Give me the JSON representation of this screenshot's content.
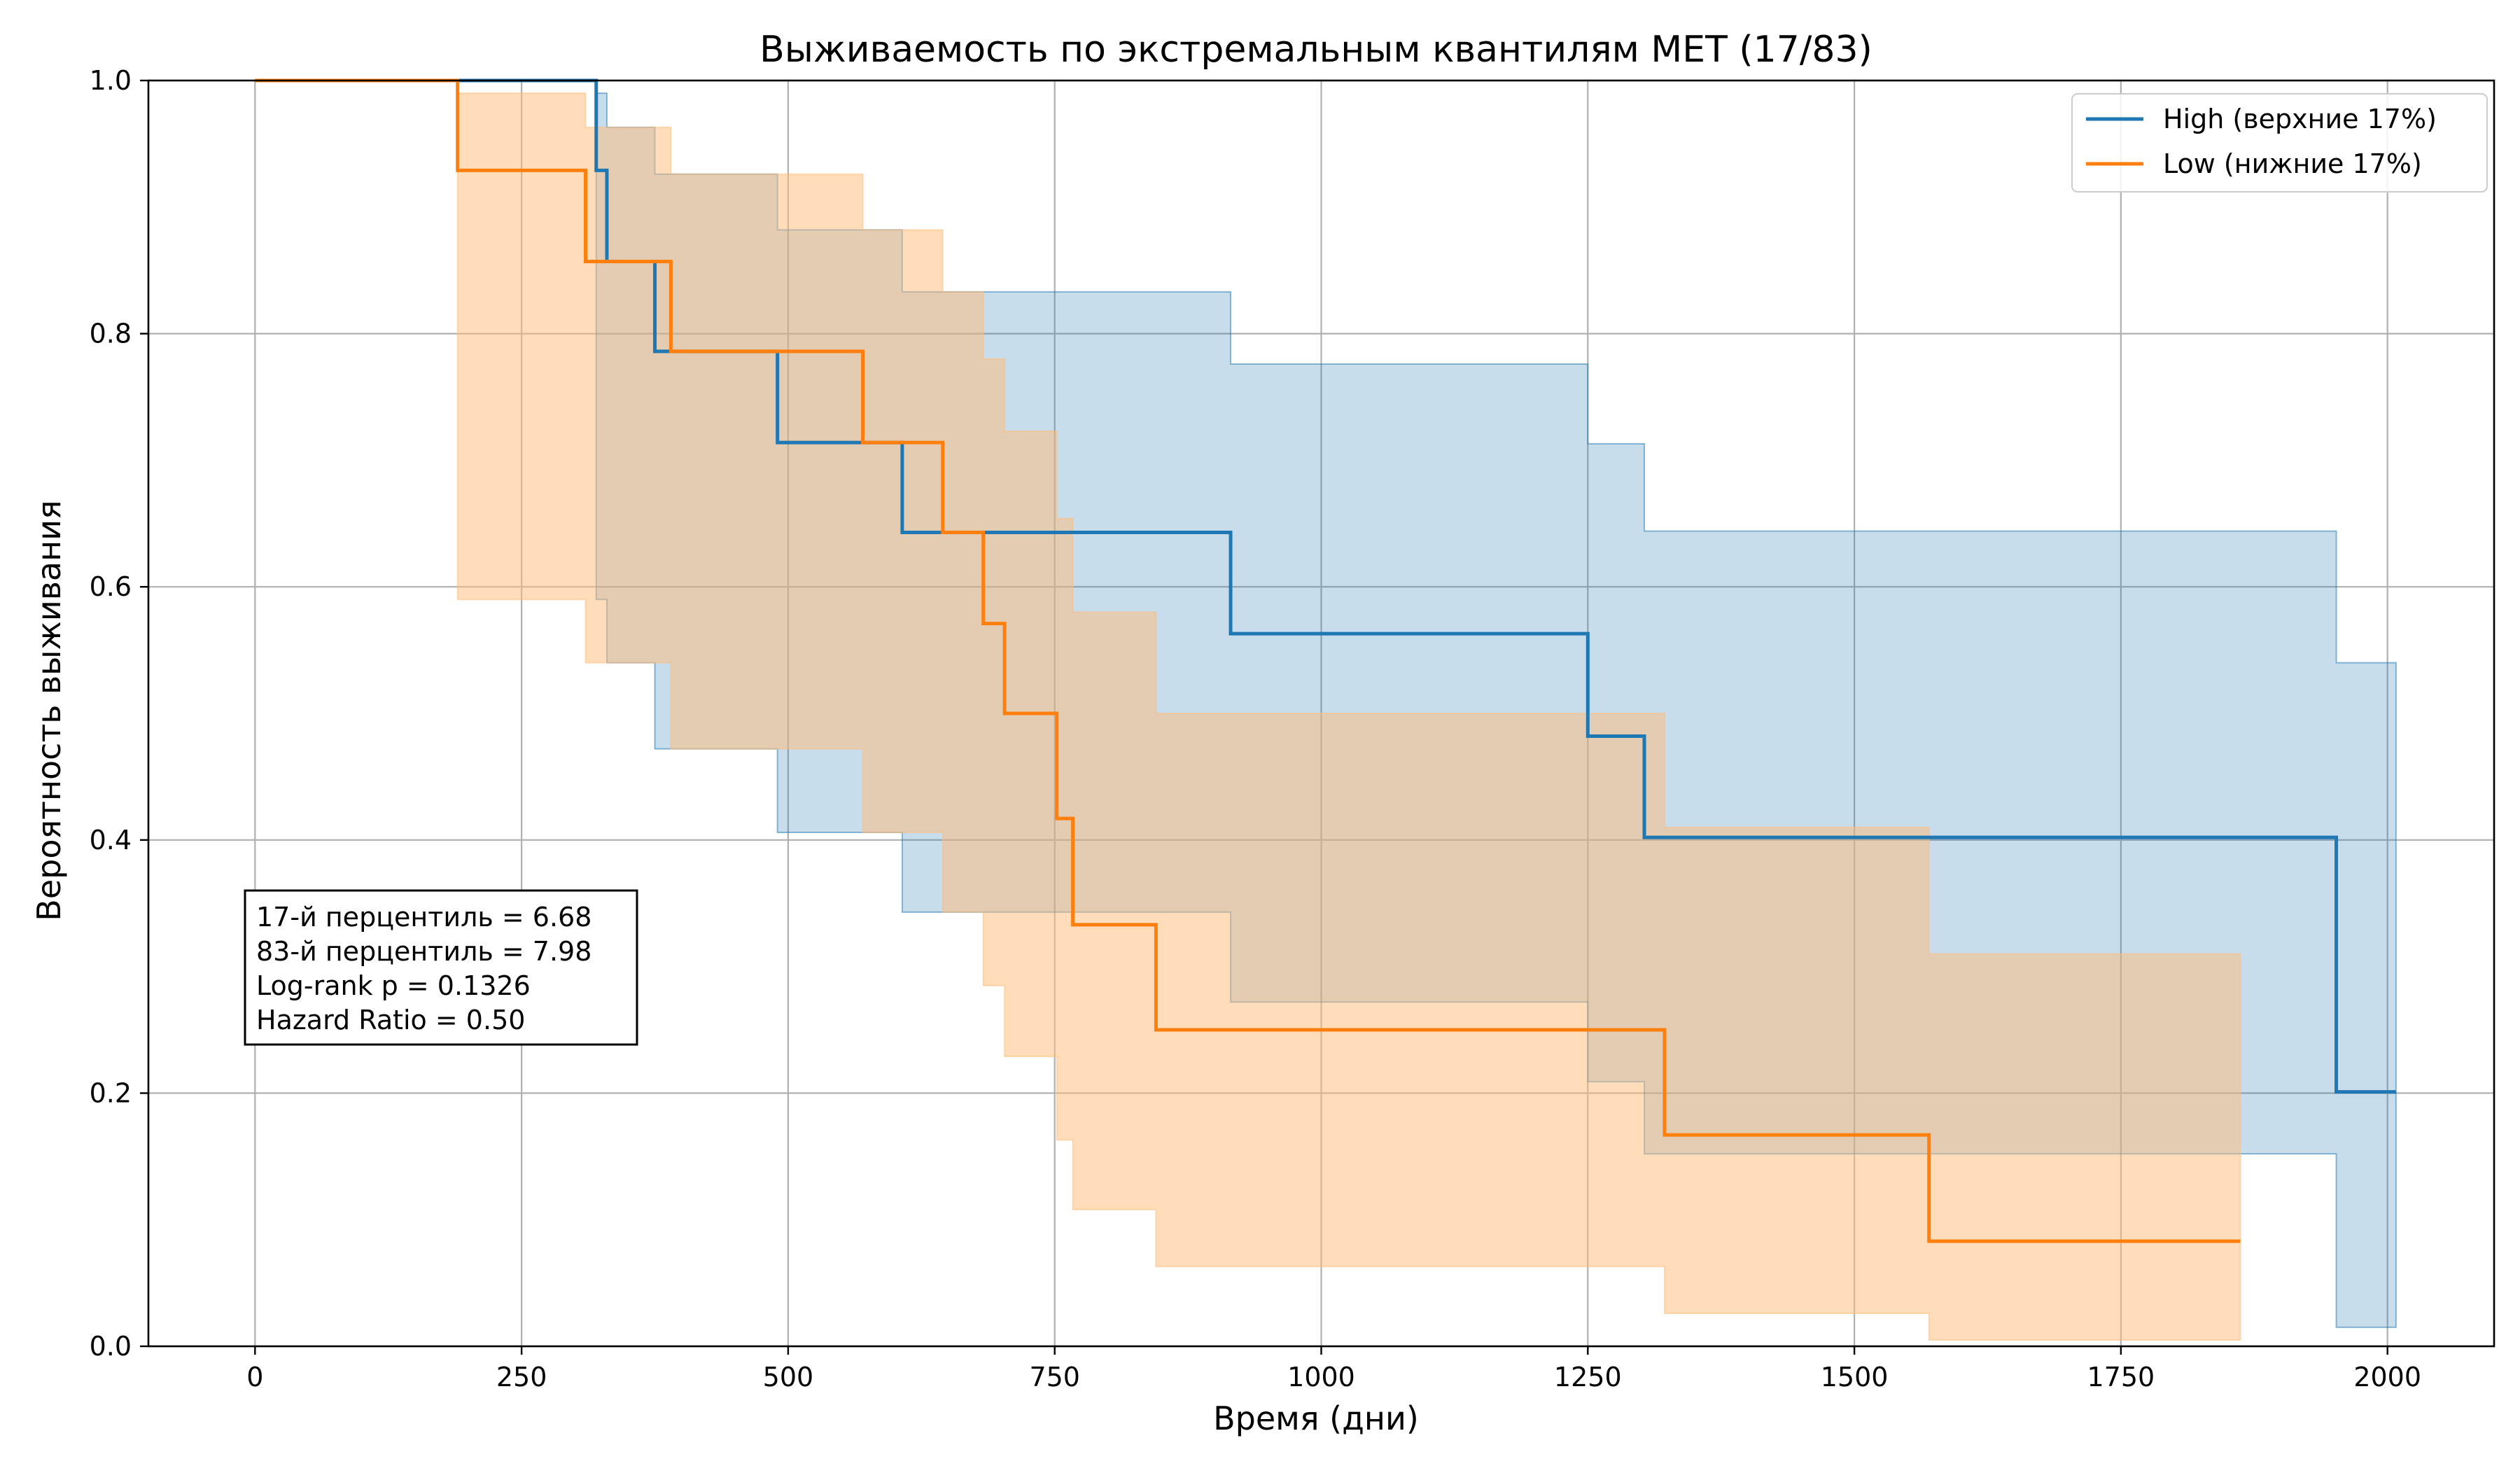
{
  "chart_data": {
    "type": "line",
    "title": "Выживаемость по экстремальным квантилям MET (17/83)",
    "xlabel": "Время (дни)",
    "ylabel": "Вероятность выживания",
    "xlim": [
      -100,
      2100
    ],
    "ylim": [
      0,
      1
    ],
    "xticks": [
      0,
      250,
      500,
      750,
      1000,
      1250,
      1500,
      1750,
      2000
    ],
    "yticks": [
      0.0,
      0.2,
      0.4,
      0.6,
      0.8,
      1.0
    ],
    "xtick_labels": [
      "0",
      "250",
      "500",
      "750",
      "1000",
      "1250",
      "1500",
      "1750",
      "2000"
    ],
    "ytick_labels": [
      "0.0",
      "0.2",
      "0.4",
      "0.6",
      "0.8",
      "1.0"
    ],
    "grid": true,
    "legend_position": "top-right",
    "step": "post",
    "series": [
      {
        "name": "High (верхние 17%)",
        "color": "#1f77b4",
        "fill_color": "#1f77b4",
        "x": [
          0,
          320,
          330,
          375,
          490,
          607,
          915,
          1250,
          1303,
          1952,
          2008
        ],
        "y": [
          1.0,
          0.929,
          0.857,
          0.786,
          0.714,
          0.643,
          0.563,
          0.482,
          0.402,
          0.201,
          0.201
        ],
        "ci_upper": [
          1.0,
          0.99,
          0.963,
          0.926,
          0.882,
          0.833,
          0.776,
          0.713,
          0.644,
          0.54,
          0.54
        ],
        "ci_lower": [
          1.0,
          0.59,
          0.54,
          0.472,
          0.406,
          0.343,
          0.272,
          0.209,
          0.152,
          0.015,
          0.015
        ]
      },
      {
        "name": "Low (нижние 17%)",
        "color": "#ff7f0e",
        "fill_color": "#ffbb78",
        "x": [
          0,
          190,
          310,
          390,
          570,
          645,
          683,
          703,
          752,
          767,
          845,
          1322,
          1570,
          1862
        ],
        "y": [
          1.0,
          0.929,
          0.857,
          0.786,
          0.714,
          0.643,
          0.571,
          0.5,
          0.417,
          0.333,
          0.25,
          0.167,
          0.083,
          0.083
        ],
        "ci_upper": [
          1.0,
          0.99,
          0.963,
          0.926,
          0.882,
          0.833,
          0.78,
          0.723,
          0.654,
          0.58,
          0.5,
          0.41,
          0.31,
          0.31
        ],
        "ci_lower": [
          1.0,
          0.59,
          0.54,
          0.472,
          0.406,
          0.343,
          0.285,
          0.229,
          0.163,
          0.108,
          0.063,
          0.026,
          0.005,
          0.005
        ]
      }
    ],
    "annotation_lines": [
      "17-й перцентиль = 6.68",
      "83-й перцентиль = 7.98",
      "Log-rank p = 0.1326",
      "Hazard Ratio = 0.50"
    ]
  }
}
